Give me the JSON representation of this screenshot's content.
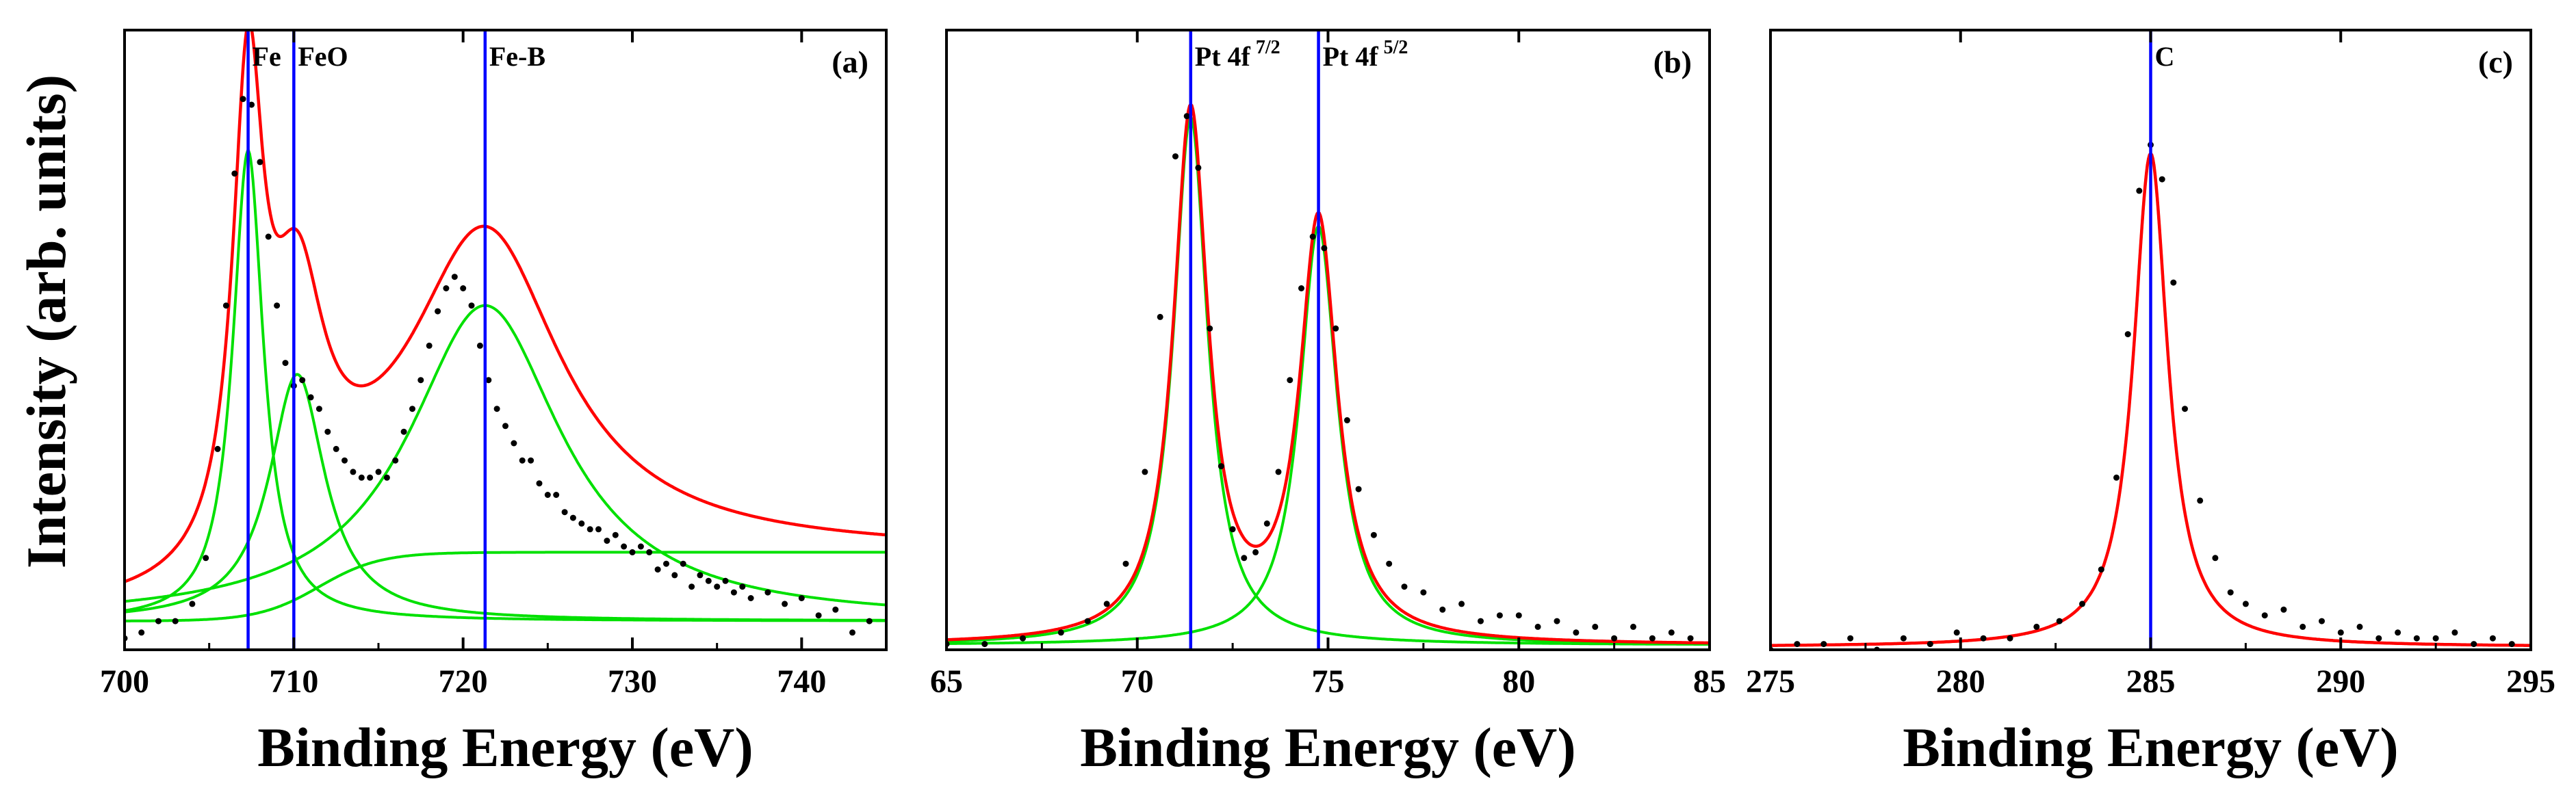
{
  "ylabel": "Intensity (arb. units)",
  "colors": {
    "data_points": "#000000",
    "envelope": "#ff0000",
    "component": "#00e000",
    "reference_line": "#0000ff"
  },
  "chart_data": [
    {
      "type": "line",
      "tag": "(a)",
      "xlabel": "Binding Energy (eV)",
      "xlim": [
        700,
        745
      ],
      "ylim": [
        0,
        1.08
      ],
      "xticks": [
        700,
        710,
        720,
        730,
        740
      ],
      "xtick_labels": [
        "700",
        "710",
        "720",
        "730",
        "740"
      ],
      "reference_lines": [
        {
          "x": 707.3,
          "label": "Fe",
          "sup": ""
        },
        {
          "x": 710.0,
          "label": "FeO",
          "sup": ""
        },
        {
          "x": 721.3,
          "label": "Fe-B",
          "sup": ""
        }
      ],
      "baseline": 0.05,
      "components": [
        {
          "center": 707.3,
          "height": 0.82,
          "width": 1.1
        },
        {
          "center": 710.2,
          "height": 0.43,
          "width": 2.0
        },
        {
          "center": 721.3,
          "height": 0.55,
          "width": 5.5
        },
        {
          "step_center": 711.5,
          "step_height": 0.12,
          "step_width": 1.8
        }
      ],
      "data_points": {
        "x": [
          700,
          701,
          702,
          703,
          704,
          704.8,
          705.5,
          706,
          706.5,
          707,
          707.5,
          708,
          708.5,
          709,
          709.5,
          710,
          710.5,
          711,
          711.5,
          712,
          712.5,
          713,
          713.5,
          714,
          714.5,
          715,
          715.5,
          716,
          716.5,
          717,
          717.5,
          718,
          718.5,
          719,
          719.5,
          720,
          720.5,
          721,
          721.5,
          722,
          722.5,
          723,
          723.5,
          724,
          724.5,
          725,
          725.5,
          726,
          726.5,
          727,
          727.5,
          728,
          728.5,
          729,
          729.5,
          730,
          730.5,
          731,
          731.5,
          732,
          732.5,
          733,
          733.5,
          734,
          734.5,
          735,
          735.5,
          736,
          736.5,
          737,
          738,
          739,
          740,
          741,
          742,
          743,
          744
        ],
        "y": [
          0.02,
          0.03,
          0.05,
          0.05,
          0.08,
          0.16,
          0.35,
          0.6,
          0.83,
          0.96,
          0.95,
          0.85,
          0.72,
          0.6,
          0.5,
          0.46,
          0.47,
          0.44,
          0.42,
          0.38,
          0.35,
          0.33,
          0.31,
          0.3,
          0.3,
          0.31,
          0.3,
          0.33,
          0.38,
          0.42,
          0.47,
          0.53,
          0.59,
          0.63,
          0.65,
          0.63,
          0.6,
          0.53,
          0.47,
          0.42,
          0.39,
          0.36,
          0.33,
          0.33,
          0.29,
          0.27,
          0.27,
          0.24,
          0.23,
          0.22,
          0.21,
          0.21,
          0.19,
          0.2,
          0.18,
          0.17,
          0.18,
          0.17,
          0.14,
          0.15,
          0.13,
          0.15,
          0.11,
          0.13,
          0.12,
          0.11,
          0.12,
          0.1,
          0.11,
          0.09,
          0.1,
          0.08,
          0.09,
          0.06,
          0.07,
          0.03,
          0.05
        ]
      }
    },
    {
      "type": "line",
      "tag": "(b)",
      "xlabel": "Binding Energy (eV)",
      "xlim": [
        65,
        85
      ],
      "ylim": [
        0,
        1.08
      ],
      "xticks": [
        65,
        70,
        75,
        80,
        85
      ],
      "xtick_labels": [
        "65",
        "70",
        "75",
        "80",
        "85"
      ],
      "reference_lines": [
        {
          "x": 71.4,
          "label": "Pt 4f",
          "sup": "7/2"
        },
        {
          "x": 74.75,
          "label": "Pt 4f",
          "sup": "5/2"
        }
      ],
      "baseline": 0.008,
      "components": [
        {
          "center": 71.4,
          "height": 0.92,
          "width": 0.55
        },
        {
          "center": 74.75,
          "height": 0.73,
          "width": 0.6
        }
      ],
      "data_points": {
        "x": [
          65,
          66,
          67,
          68,
          68.7,
          69.2,
          69.7,
          70.2,
          70.6,
          71,
          71.3,
          71.6,
          71.9,
          72.2,
          72.5,
          72.8,
          73.1,
          73.4,
          73.7,
          74,
          74.3,
          74.6,
          74.9,
          75.2,
          75.5,
          75.8,
          76.2,
          76.6,
          77,
          77.5,
          78,
          78.5,
          79,
          79.5,
          80,
          80.5,
          81,
          81.5,
          82,
          82.5,
          83,
          83.5,
          84,
          84.5
        ],
        "y": [
          0.01,
          0.01,
          0.02,
          0.03,
          0.05,
          0.08,
          0.15,
          0.31,
          0.58,
          0.86,
          0.93,
          0.84,
          0.56,
          0.32,
          0.21,
          0.16,
          0.17,
          0.22,
          0.31,
          0.47,
          0.63,
          0.72,
          0.7,
          0.56,
          0.4,
          0.28,
          0.2,
          0.15,
          0.11,
          0.1,
          0.07,
          0.08,
          0.05,
          0.06,
          0.06,
          0.04,
          0.05,
          0.03,
          0.04,
          0.02,
          0.04,
          0.02,
          0.03,
          0.02
        ]
      }
    },
    {
      "type": "line",
      "tag": "(c)",
      "xlabel": "Binding Energy (eV)",
      "xlim": [
        275,
        295
      ],
      "ylim": [
        0,
        1.08
      ],
      "xticks": [
        275,
        280,
        285,
        290,
        295
      ],
      "xtick_labels": [
        "275",
        "280",
        "285",
        "290",
        "295"
      ],
      "reference_lines": [
        {
          "x": 285.0,
          "label": "C",
          "sup": ""
        }
      ],
      "baseline": 0.005,
      "components": [
        {
          "center": 285.0,
          "height": 0.86,
          "width": 0.55
        }
      ],
      "data_points": {
        "x": [
          275,
          275.7,
          276.4,
          277.1,
          277.8,
          278.5,
          279.2,
          279.9,
          280.6,
          281.3,
          282,
          282.6,
          283.2,
          283.7,
          284.1,
          284.4,
          284.7,
          285,
          285.3,
          285.6,
          285.9,
          286.3,
          286.7,
          287.1,
          287.5,
          288,
          288.5,
          289,
          289.5,
          290,
          290.5,
          291,
          291.5,
          292,
          292.5,
          293,
          293.5,
          294,
          294.5
        ],
        "y": [
          0.0,
          0.01,
          0.01,
          0.02,
          0.0,
          0.02,
          0.01,
          0.03,
          0.02,
          0.02,
          0.04,
          0.05,
          0.08,
          0.14,
          0.3,
          0.55,
          0.8,
          0.88,
          0.82,
          0.64,
          0.42,
          0.26,
          0.16,
          0.1,
          0.08,
          0.06,
          0.07,
          0.04,
          0.05,
          0.03,
          0.04,
          0.02,
          0.03,
          0.02,
          0.02,
          0.03,
          0.01,
          0.02,
          0.01
        ]
      }
    }
  ]
}
